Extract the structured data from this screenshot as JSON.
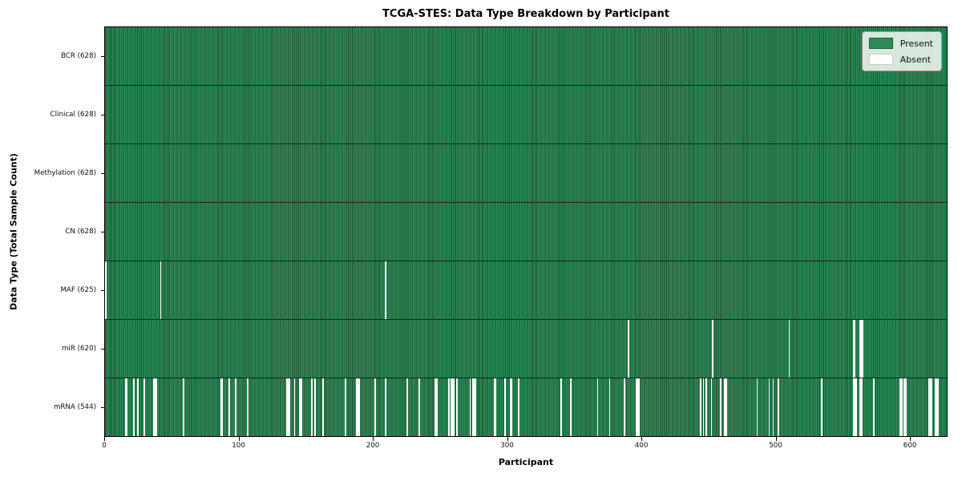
{
  "chart_data": {
    "type": "heatmap",
    "title": "TCGA-STES: Data Type Breakdown by Participant",
    "xlabel": "Participant",
    "ylabel": "Data Type (Total Sample Count)",
    "n_participants": 628,
    "xlim": [
      0,
      628
    ],
    "x_ticks": [
      0,
      100,
      200,
      300,
      400,
      500,
      600
    ],
    "grid": false,
    "legend": {
      "position": "upper right",
      "entries": [
        {
          "label": "Present",
          "color": "#2e8b57"
        },
        {
          "label": "Absent",
          "color": "#ffffff"
        }
      ]
    },
    "colors": {
      "present": "#2e8b57",
      "present_edge": "#1b5233",
      "absent": "#ffffff",
      "row_divider": "#10291a",
      "axis": "#000000"
    },
    "rows": [
      {
        "data_type": "BCR",
        "label": "BCR (628)",
        "present_count": 628,
        "absent_count": 0,
        "absent_participants": []
      },
      {
        "data_type": "Clinical",
        "label": "Clinical (628)",
        "present_count": 628,
        "absent_count": 0,
        "absent_participants": []
      },
      {
        "data_type": "Methylation",
        "label": "Methylation (628)",
        "present_count": 628,
        "absent_count": 0,
        "absent_participants": []
      },
      {
        "data_type": "CN",
        "label": "CN (628)",
        "present_count": 628,
        "absent_count": 0,
        "absent_participants": []
      },
      {
        "data_type": "MAF",
        "label": "MAF (625)",
        "present_count": 625,
        "absent_count": 3,
        "absent_participants": [
          0,
          41,
          209
        ]
      },
      {
        "data_type": "miR",
        "label": "miR (620)",
        "present_count": 620,
        "absent_count": 8,
        "absent_participants": [
          390,
          453,
          510,
          558,
          559,
          563,
          564,
          565
        ]
      },
      {
        "data_type": "mRNA",
        "label": "mRNA (544)",
        "present_count": 544,
        "absent_count": 84,
        "absent_participants": [
          15,
          16,
          21,
          24,
          29,
          36,
          37,
          38,
          58,
          86,
          87,
          92,
          97,
          106,
          135,
          136,
          137,
          141,
          145,
          146,
          154,
          156,
          162,
          179,
          187,
          188,
          189,
          201,
          209,
          225,
          234,
          246,
          247,
          256,
          258,
          259,
          260,
          262,
          272,
          274,
          275,
          276,
          290,
          291,
          298,
          302,
          303,
          308,
          340,
          347,
          367,
          376,
          387,
          396,
          397,
          398,
          444,
          446,
          448,
          452,
          459,
          462,
          463,
          486,
          495,
          498,
          502,
          534,
          558,
          559,
          560,
          563,
          564,
          573,
          593,
          594,
          596,
          597,
          614,
          615,
          616,
          619,
          620,
          621
        ]
      }
    ]
  }
}
